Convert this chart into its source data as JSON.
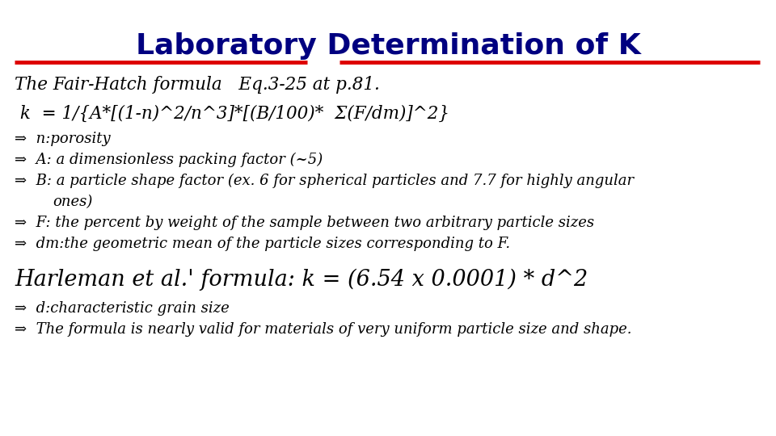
{
  "title": "Laboratory Determination of K",
  "title_color": "#000080",
  "title_fontsize": 26,
  "line_color": "#dd0000",
  "bg_color": "#ffffff",
  "text_color": "#000000",
  "line1": "The Fair-Hatch formula   Eq.3-25 at p.81.",
  "line2": " k  = 1/{A*[(1-n)^2/n^3]*[(B/100)*  Σ(F/dm)]^2}",
  "bullets": [
    "n:porosity",
    "A: a dimensionless packing factor (~5)",
    "B: a particle shape factor (ex. 6 for spherical particles and 7.7 for highly angular",
    "ones)",
    "F: the percent by weight of the sample between two arbitrary particle sizes",
    "dm:the geometric mean of the particle sizes corresponding to F."
  ],
  "bullet_indent": [
    false,
    false,
    false,
    true,
    false,
    false
  ],
  "harleman_line": "Harleman et al.' formula: k = (6.54 x 0.0001) * d^2",
  "harleman_bullets": [
    "d:characteristic grain size",
    "The formula is nearly valid for materials of very uniform particle size and shape."
  ],
  "arrow": "⇒",
  "body_fontsize": 13.0,
  "line1_fontsize": 15.5,
  "line2_fontsize": 15.5,
  "harleman_fontsize": 19.5
}
